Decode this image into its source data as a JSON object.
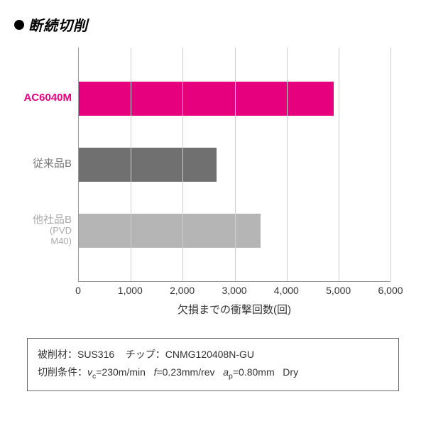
{
  "title": "断続切削",
  "chart": {
    "type": "bar-horizontal",
    "xlim": [
      0,
      6000
    ],
    "xtick_step": 1000,
    "xticks": [
      "0",
      "1,000",
      "2,000",
      "3,000",
      "4,000",
      "5,000",
      "6,000"
    ],
    "xlabel": "欠損までの衝撃回数(回)",
    "grid_color": "#cfcfcf",
    "axis_color": "#999999",
    "background": "#ffffff",
    "label_fontsize": 15,
    "tick_fontsize": 14,
    "bars": [
      {
        "label": "AC6040M",
        "sublabel": "",
        "value": 4900,
        "color": "#e6007e",
        "label_color": "#e6007e",
        "label_weight": "700"
      },
      {
        "label": "従来品B",
        "sublabel": "",
        "value": 2650,
        "color": "#707070",
        "label_color": "#777777",
        "label_weight": "400"
      },
      {
        "label": "他社品B",
        "sublabel": "(PVD M40)",
        "value": 3500,
        "color": "#b5b5b5",
        "label_color": "#aaaaaa",
        "label_weight": "400"
      }
    ]
  },
  "conditions": {
    "line1_a": "被削材：SUS316",
    "line1_b": "チップ：CNMG120408N-GU",
    "line2_prefix": "切削条件：",
    "vc_label": "v",
    "vc_sub": "c",
    "vc_val": "=230m/min",
    "f_label": "f",
    "f_val": "=0.23mm/rev",
    "ap_label": "a",
    "ap_sub": "p",
    "ap_val": "=0.80mm",
    "dry": "Dry"
  }
}
